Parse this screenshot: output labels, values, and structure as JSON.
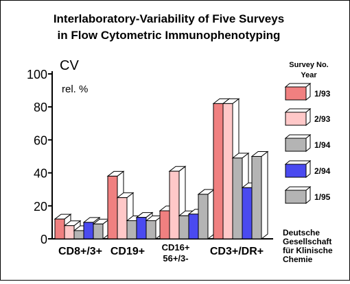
{
  "chart_data": {
    "type": "bar",
    "title": [
      "Interlaboratory-Variability of Five Surveys",
      "in Flow Cytometric Immunophenotyping"
    ],
    "ylabel": "CV",
    "unit_label": "rel. %",
    "ylim": [
      0,
      100
    ],
    "yticks": [
      "0",
      "20",
      "40",
      "60",
      "80",
      "100"
    ],
    "categories": [
      [
        "CD8+/3+"
      ],
      [
        "CD19+"
      ],
      [
        "CD16+",
        "56+/3-"
      ],
      [
        "CD3+/DR+"
      ]
    ],
    "legend_title": [
      "Survey No.",
      "Year"
    ],
    "series": [
      {
        "name": "1/93",
        "color": "#f08080",
        "values": [
          12,
          38,
          17,
          82
        ]
      },
      {
        "name": "2/93",
        "color": "#ffc8c8",
        "values": [
          8,
          25,
          41,
          82
        ]
      },
      {
        "name": "1/94",
        "color": "#b4b4b4",
        "values": [
          5,
          11,
          14,
          49
        ]
      },
      {
        "name": "2/94",
        "color": "#4a4af0",
        "values": [
          10,
          13,
          15,
          31
        ]
      },
      {
        "name": "1/95",
        "color": "#b4b4b4",
        "values": [
          9,
          11,
          27,
          50
        ]
      }
    ],
    "grid": false,
    "legend_position": "right"
  },
  "credit": [
    "Deutsche",
    "Gesellschaft",
    "für Klinische",
    "Chemie"
  ]
}
